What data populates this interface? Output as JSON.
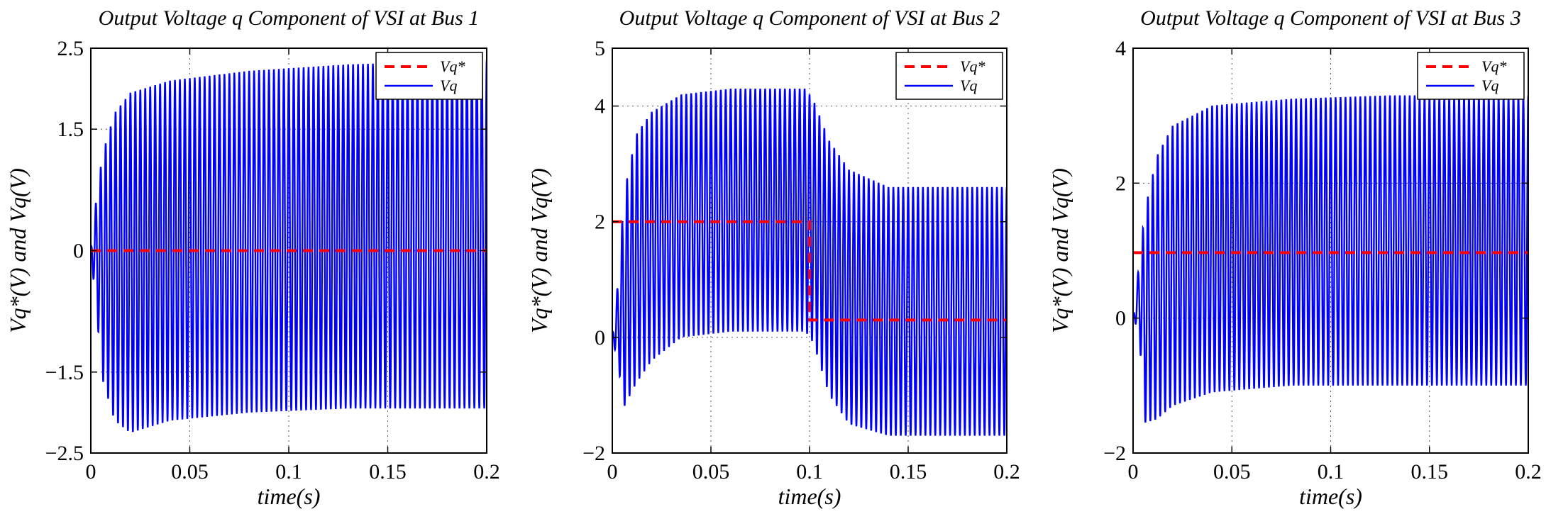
{
  "chart_data": [
    {
      "type": "line",
      "title": "Output Voltage q Component of VSI at Bus 1",
      "xlabel": "time(s)",
      "ylabel": "Vq*(V) and Vq(V)",
      "xlim": [
        0,
        0.2
      ],
      "ylim": [
        -2.5,
        2.5
      ],
      "xticks": [
        0,
        0.05,
        0.1,
        0.15,
        0.2
      ],
      "xtick_labels": [
        "0",
        "0.05",
        "0.1",
        "0.15",
        "0.2"
      ],
      "yticks": [
        -2.5,
        -1.5,
        0,
        1.5,
        2.5
      ],
      "ytick_labels": [
        "−2.5",
        "−1.5",
        "0",
        "1.5",
        "2.5"
      ],
      "grid": "dotted",
      "legend": "top-right",
      "series": [
        {
          "name": "Vq*",
          "style": "dashed",
          "color": "#ff0000",
          "x": [
            0,
            0.2
          ],
          "y": [
            0,
            0
          ]
        },
        {
          "name": "Vq",
          "style": "solid",
          "color": "#0000ff",
          "oscillation": {
            "cycles": 80,
            "center": 0.05,
            "envelope_t": [
              0,
              0.003,
              0.006,
              0.012,
              0.02,
              0.04,
              0.08,
              0.13,
              0.2
            ],
            "upper": [
              0,
              0.7,
              1.2,
              1.7,
              1.95,
              2.1,
              2.22,
              2.3,
              2.35
            ],
            "lower": [
              0,
              -0.8,
              -1.6,
              -2.1,
              -2.25,
              -2.1,
              -2.0,
              -1.95,
              -1.95
            ]
          }
        }
      ]
    },
    {
      "type": "line",
      "title": "Output Voltage q Component of VSI at Bus 2",
      "xlabel": "time(s)",
      "ylabel": "Vq*(V) and Vq(V)",
      "xlim": [
        0,
        0.2
      ],
      "ylim": [
        -2,
        5
      ],
      "xticks": [
        0,
        0.05,
        0.1,
        0.15,
        0.2
      ],
      "xtick_labels": [
        "0",
        "0.05",
        "0.1",
        "0.15",
        "0.2"
      ],
      "yticks": [
        -2,
        0,
        2,
        4,
        5
      ],
      "ytick_labels": [
        "−2",
        "0",
        "2",
        "4",
        "5"
      ],
      "grid": "dotted",
      "legend": "top-right",
      "series": [
        {
          "name": "Vq*",
          "style": "dashed",
          "color": "#ff0000",
          "x": [
            0,
            0.1,
            0.1,
            0.2
          ],
          "y": [
            2.0,
            2.0,
            0.3,
            0.3
          ]
        },
        {
          "name": "Vq",
          "style": "solid",
          "color": "#0000ff",
          "oscillation": {
            "cycles": 80,
            "center": 1.0,
            "envelope_t": [
              0,
              0.003,
              0.006,
              0.012,
              0.02,
              0.035,
              0.06,
              0.098,
              0.102,
              0.11,
              0.12,
              0.14,
              0.2
            ],
            "upper": [
              0,
              1.0,
              2.5,
              3.5,
              3.9,
              4.2,
              4.3,
              4.3,
              4.1,
              3.4,
              2.9,
              2.6,
              2.6
            ],
            "lower": [
              0,
              -0.5,
              -1.2,
              -0.8,
              -0.4,
              0.0,
              0.1,
              0.1,
              -0.1,
              -1.0,
              -1.5,
              -1.7,
              -1.7
            ]
          }
        }
      ]
    },
    {
      "type": "line",
      "title": "Output Voltage q Component of VSI at Bus 3",
      "xlabel": "time(s)",
      "ylabel": "Vq*(V) and Vq(V)",
      "xlim": [
        0,
        0.2
      ],
      "ylim": [
        -2,
        4
      ],
      "xticks": [
        0,
        0.05,
        0.1,
        0.15,
        0.2
      ],
      "xtick_labels": [
        "0",
        "0.05",
        "0.1",
        "0.15",
        "0.2"
      ],
      "yticks": [
        -2,
        0,
        2,
        4
      ],
      "ytick_labels": [
        "−2",
        "0",
        "2",
        "4"
      ],
      "grid": "dotted",
      "legend": "top-right",
      "series": [
        {
          "name": "Vq*",
          "style": "dashed",
          "color": "#ff0000",
          "x": [
            0,
            0.2
          ],
          "y": [
            0.97,
            0.97
          ]
        },
        {
          "name": "Vq",
          "style": "solid",
          "color": "#0000ff",
          "oscillation": {
            "cycles": 80,
            "center": 1.0,
            "envelope_t": [
              0,
              0.003,
              0.006,
              0.012,
              0.02,
              0.04,
              0.08,
              0.13,
              0.2
            ],
            "upper": [
              0,
              0.8,
              1.6,
              2.4,
              2.85,
              3.15,
              3.25,
              3.3,
              3.3
            ],
            "lower": [
              0,
              -0.2,
              -1.55,
              -1.5,
              -1.3,
              -1.1,
              -1.0,
              -1.0,
              -1.0
            ]
          }
        }
      ]
    }
  ]
}
